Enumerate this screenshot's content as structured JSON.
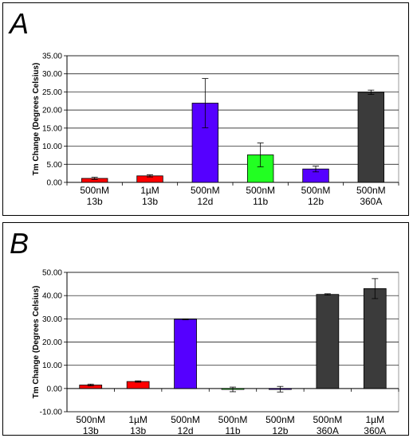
{
  "chart_data": [
    {
      "panel_label": "A",
      "type": "bar",
      "ylabel": "Tm Change (Degrees Celsius)",
      "ylim": [
        0,
        35
      ],
      "yticks": [
        "0.00",
        "5.00",
        "10.00",
        "15.00",
        "20.00",
        "25.00",
        "30.00",
        "35.00"
      ],
      "grid": true,
      "categories": [
        {
          "line1": "500nM",
          "line2": "13b"
        },
        {
          "line1": "1µM",
          "line2": "13b"
        },
        {
          "line1": "500nM",
          "line2": "12d"
        },
        {
          "line1": "500nM",
          "line2": "11b"
        },
        {
          "line1": "500nM",
          "line2": "12b"
        },
        {
          "line1": "500nM",
          "line2": "360A"
        }
      ],
      "values": [
        1.1,
        1.8,
        21.9,
        7.6,
        3.7,
        24.9
      ],
      "errors": [
        0.3,
        0.3,
        6.8,
        3.3,
        0.8,
        0.6
      ],
      "colors": [
        "#ff0000",
        "#ff0000",
        "#5500ff",
        "#22ff22",
        "#5500ff",
        "#3b3b3b"
      ]
    },
    {
      "panel_label": "B",
      "type": "bar",
      "ylabel": "Tm Change (Degrees Celsius)",
      "ylim": [
        -10,
        50
      ],
      "yticks": [
        "-10.00",
        "0.00",
        "10.00",
        "20.00",
        "30.00",
        "40.00",
        "50.00"
      ],
      "grid": true,
      "categories": [
        {
          "line1": "500nM",
          "line2": "13b"
        },
        {
          "line1": "1µM",
          "line2": "13b"
        },
        {
          "line1": "500nM",
          "line2": "12d"
        },
        {
          "line1": "500nM",
          "line2": "11b"
        },
        {
          "line1": "500nM",
          "line2": "12b"
        },
        {
          "line1": "500nM",
          "line2": "360A"
        },
        {
          "line1": "1µM",
          "line2": "360A"
        }
      ],
      "values": [
        1.5,
        3.0,
        29.8,
        -0.4,
        -0.3,
        40.5,
        43.0
      ],
      "errors": [
        0.4,
        0.3,
        0.2,
        1.0,
        1.2,
        0.3,
        4.3
      ],
      "colors": [
        "#ff0000",
        "#ff0000",
        "#5500ff",
        "#22ff22",
        "#5500ff",
        "#3b3b3b",
        "#3b3b3b"
      ]
    }
  ]
}
